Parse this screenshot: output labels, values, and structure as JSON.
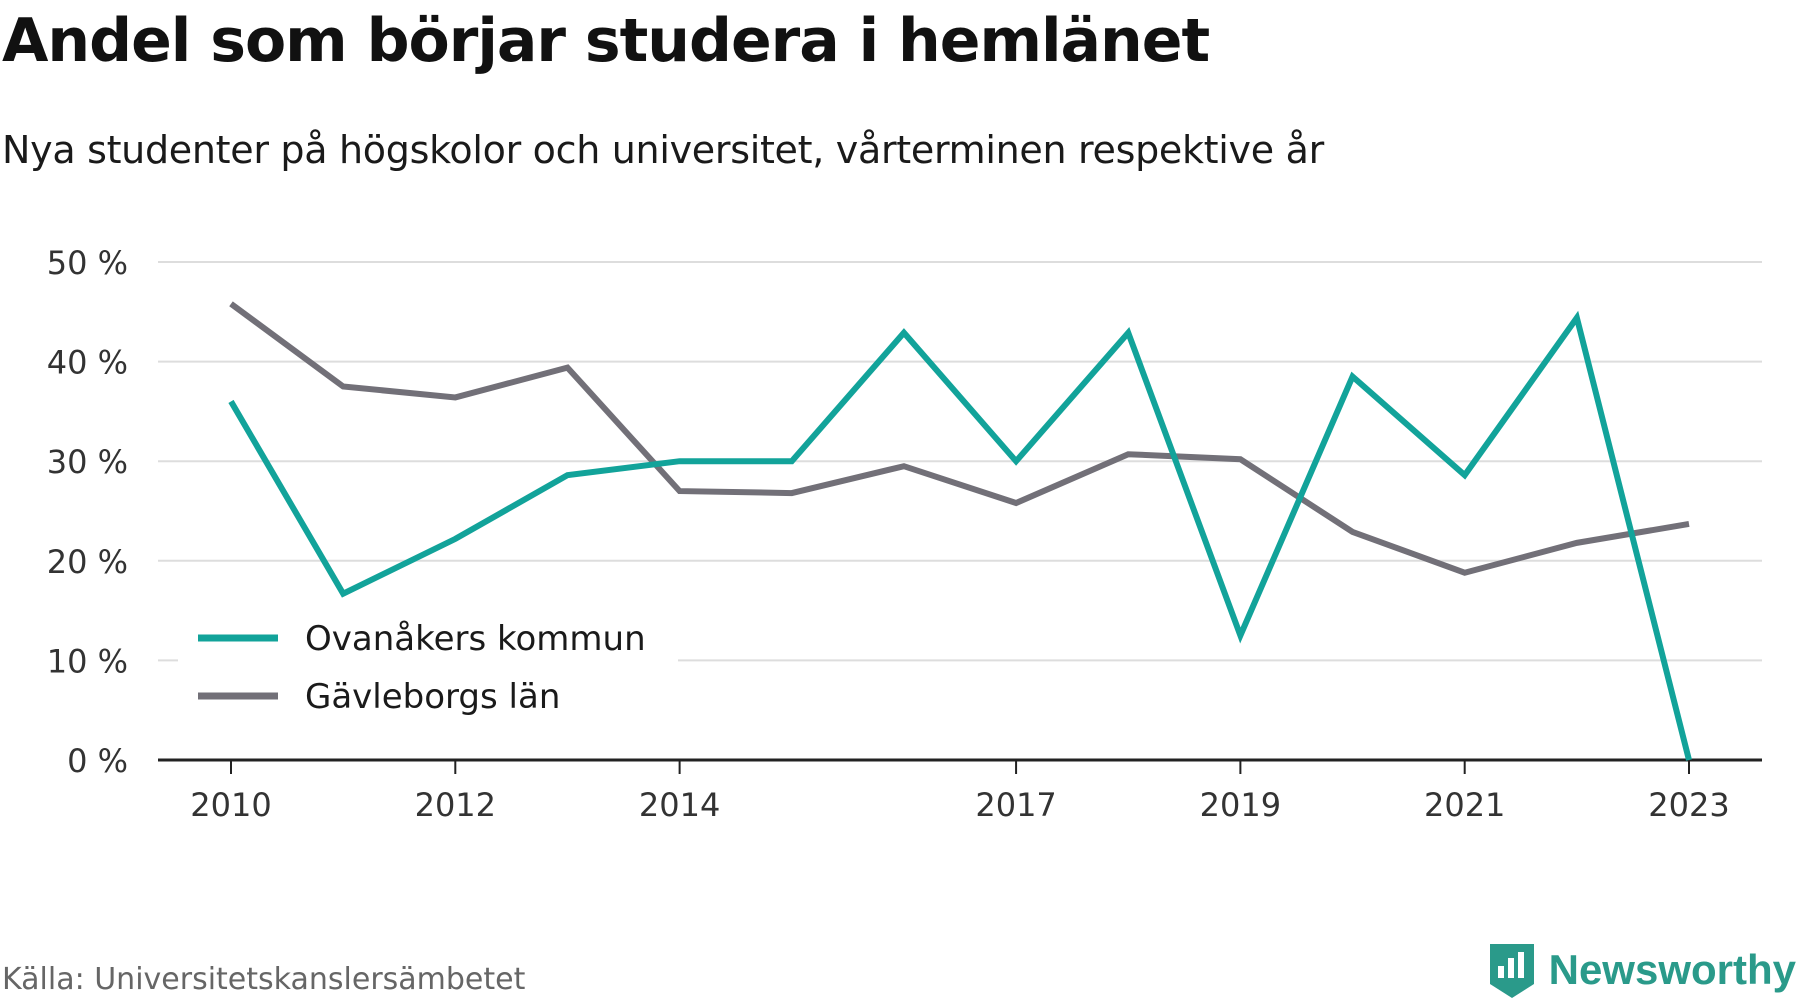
{
  "header": {
    "title": "Andel som börjar studera i hemlänet",
    "subtitle": "Nya studenter på högskolor och universitet, vårterminen respektive år"
  },
  "footer": {
    "source": "Källa: Universitetskanslersämbetet",
    "brand": "Newsworthy"
  },
  "colors": {
    "ovanaker": "#12a39a",
    "gavleborg": "#727078",
    "grid": "#dddddd",
    "axis": "#222222",
    "brand": "#2a9a8a"
  },
  "chart_data": {
    "type": "line",
    "x": [
      2010,
      2011,
      2012,
      2013,
      2014,
      2015,
      2016,
      2017,
      2018,
      2019,
      2020,
      2021,
      2022,
      2023
    ],
    "x_tick_labels": [
      "2010",
      "2012",
      "2014",
      "2017",
      "2019",
      "2021",
      "2023"
    ],
    "y_ticks": [
      0,
      10,
      20,
      30,
      40,
      50
    ],
    "y_tick_labels": [
      "0 %",
      "10 %",
      "20 %",
      "30 %",
      "40 %",
      "50 %"
    ],
    "ylim": [
      0,
      50
    ],
    "grid": true,
    "legend_position": "bottom-left",
    "series": [
      {
        "name": "Ovanåkers kommun",
        "color_key": "ovanaker",
        "values": [
          36,
          16.7,
          22.2,
          28.6,
          30,
          30,
          42.9,
          30,
          42.9,
          12.5,
          38.5,
          28.6,
          44.4,
          0
        ]
      },
      {
        "name": "Gävleborgs län",
        "color_key": "gavleborg",
        "values": [
          45.8,
          37.5,
          36.4,
          39.4,
          27,
          26.8,
          29.5,
          25.8,
          30.7,
          30.2,
          22.9,
          18.8,
          21.8,
          23.7
        ]
      }
    ]
  }
}
